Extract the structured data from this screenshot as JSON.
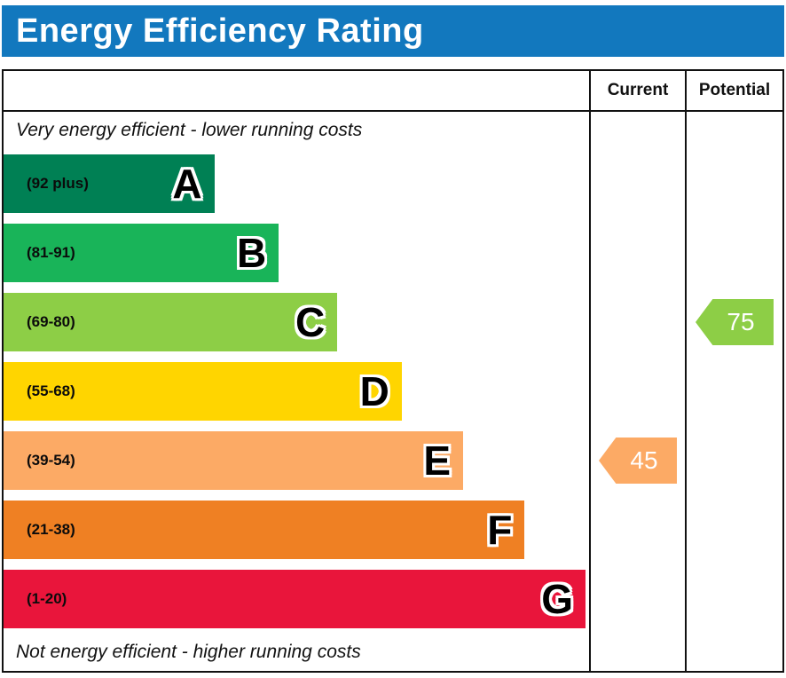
{
  "title": "Energy Efficiency Rating",
  "columns": {
    "current": "Current",
    "potential": "Potential"
  },
  "top_note": "Very energy efficient - lower running costs",
  "bottom_note": "Not energy efficient - higher running costs",
  "chart_data": {
    "type": "bar",
    "title": "Energy Efficiency Rating",
    "bands": [
      {
        "letter": "A",
        "range": "(92 plus)",
        "color": "#008054",
        "width_pct": 36
      },
      {
        "letter": "B",
        "range": "(81-91)",
        "color": "#19b459",
        "width_pct": 47
      },
      {
        "letter": "C",
        "range": "(69-80)",
        "color": "#8dce46",
        "width_pct": 57
      },
      {
        "letter": "D",
        "range": "(55-68)",
        "color": "#ffd500",
        "width_pct": 68
      },
      {
        "letter": "E",
        "range": "(39-54)",
        "color": "#fcaa65",
        "width_pct": 78.5
      },
      {
        "letter": "F",
        "range": "(21-38)",
        "color": "#ef8023",
        "width_pct": 89
      },
      {
        "letter": "G",
        "range": "(1-20)",
        "color": "#e9153b",
        "width_pct": 99.4
      }
    ],
    "current": {
      "value": 45,
      "band": "E",
      "color": "#fcaa65"
    },
    "potential": {
      "value": 75,
      "band": "C",
      "color": "#8dce46"
    }
  }
}
